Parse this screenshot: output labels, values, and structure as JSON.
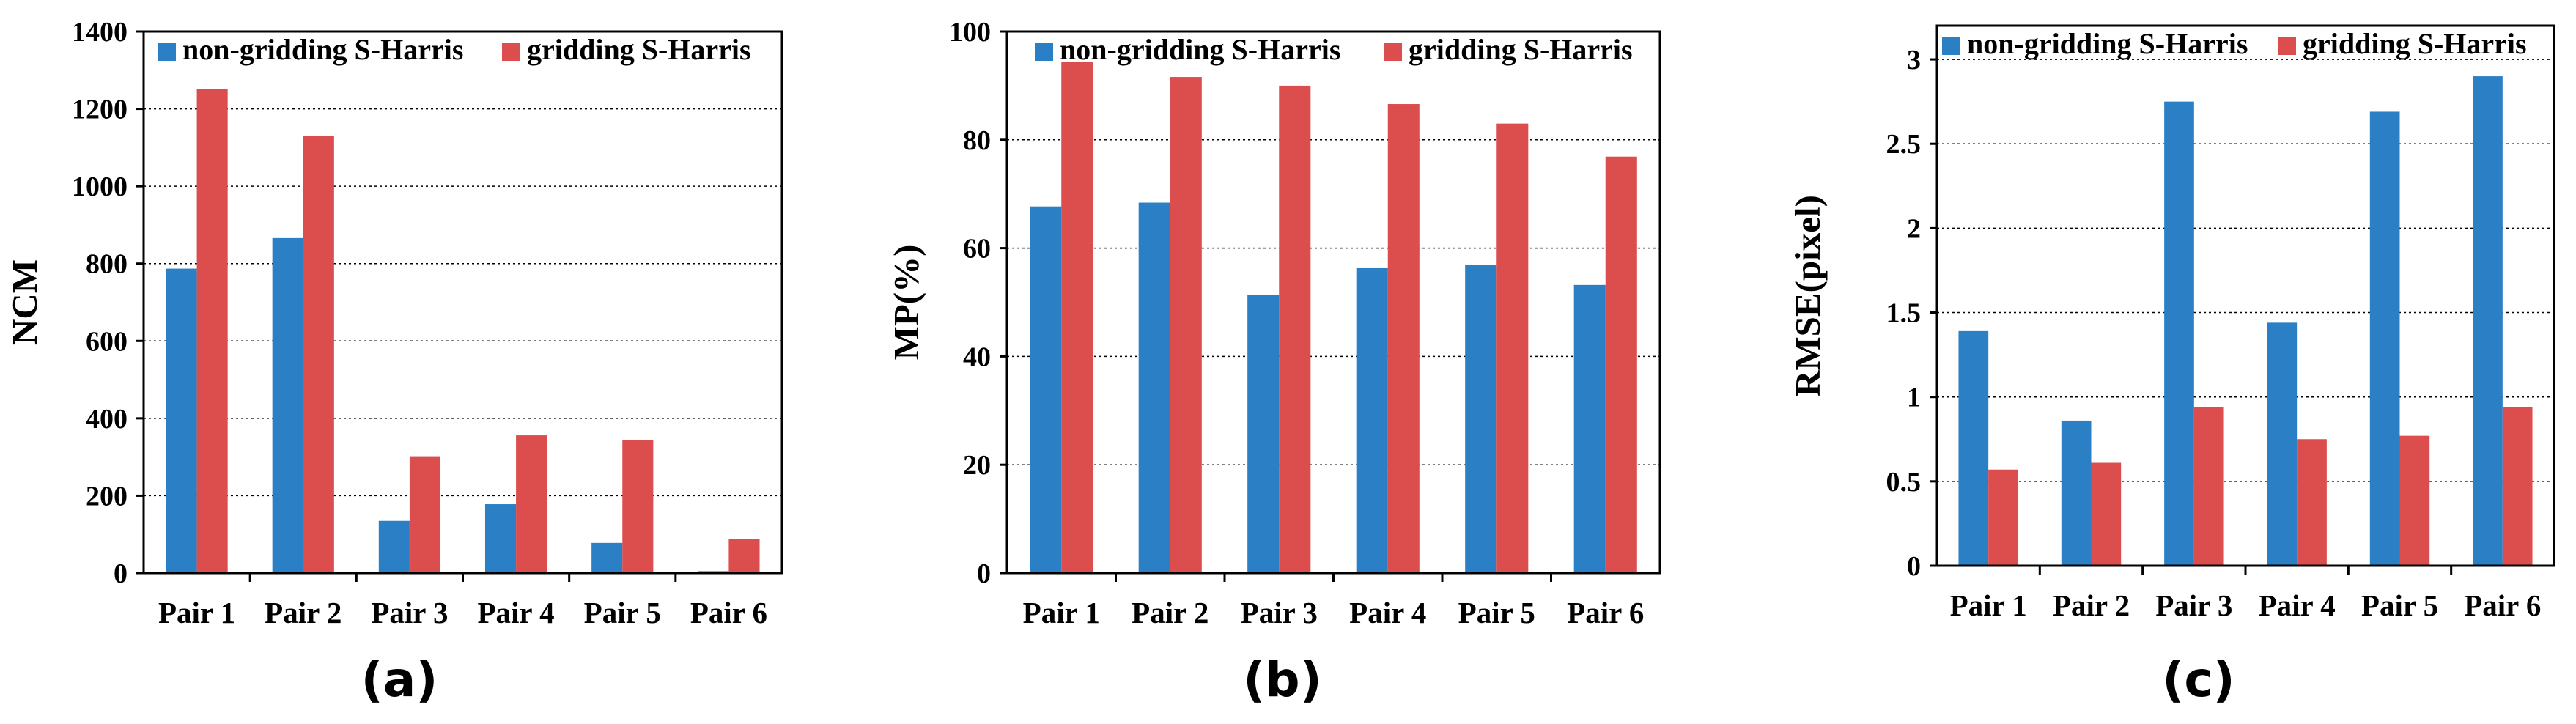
{
  "colors": {
    "non_gridding": "#2a7fc5",
    "gridding": "#dc4d4d"
  },
  "chart_data": [
    {
      "type": "bar",
      "panel_label": "(a)",
      "ylabel": "NCM",
      "categories": [
        "Pair 1",
        "Pair 2",
        "Pair 3",
        "Pair 4",
        "Pair 5",
        "Pair 6"
      ],
      "ylim": [
        0,
        1400
      ],
      "yticks": [
        "0",
        "200",
        "400",
        "600",
        "800",
        "1000",
        "1200",
        "1400"
      ],
      "grid": true,
      "legend_placement": "top",
      "series": [
        {
          "name": "non-gridding S-Harris",
          "color": "#2a7fc5",
          "values": [
            787,
            866,
            135,
            178,
            78,
            5
          ]
        },
        {
          "name": "gridding S-Harris",
          "color": "#dc4d4d",
          "values": [
            1252,
            1131,
            302,
            356,
            344,
            88
          ]
        }
      ]
    },
    {
      "type": "bar",
      "panel_label": "(b)",
      "ylabel": "MP(%)",
      "categories": [
        "Pair 1",
        "Pair 2",
        "Pair 3",
        "Pair 4",
        "Pair 5",
        "Pair 6"
      ],
      "ylim": [
        0,
        100
      ],
      "yticks": [
        "0",
        "20",
        "40",
        "60",
        "80",
        "100"
      ],
      "grid": true,
      "legend_placement": "top",
      "series": [
        {
          "name": "non-gridding S-Harris",
          "color": "#2a7fc5",
          "values": [
            67.7,
            68.4,
            51.3,
            56.3,
            56.9,
            53.2
          ]
        },
        {
          "name": "gridding S-Harris",
          "color": "#dc4d4d",
          "values": [
            94.4,
            91.6,
            90.0,
            86.6,
            83.0,
            76.9
          ]
        }
      ]
    },
    {
      "type": "bar",
      "panel_label": "(c)",
      "ylabel": "RMSE(pixel)",
      "categories": [
        "Pair 1",
        "Pair 2",
        "Pair 3",
        "Pair 4",
        "Pair 5",
        "Pair 6"
      ],
      "ylim": [
        0,
        3.2
      ],
      "yticks": [
        "0",
        "0.5",
        "1",
        "1.5",
        "2",
        "2.5",
        "3"
      ],
      "grid": true,
      "legend_placement": "top",
      "series": [
        {
          "name": "non-gridding S-Harris",
          "color": "#2a7fc5",
          "values": [
            1.39,
            0.86,
            2.75,
            1.44,
            2.69,
            2.9
          ]
        },
        {
          "name": "gridding S-Harris",
          "color": "#dc4d4d",
          "values": [
            0.57,
            0.61,
            0.94,
            0.75,
            0.77,
            0.94
          ]
        }
      ]
    }
  ]
}
